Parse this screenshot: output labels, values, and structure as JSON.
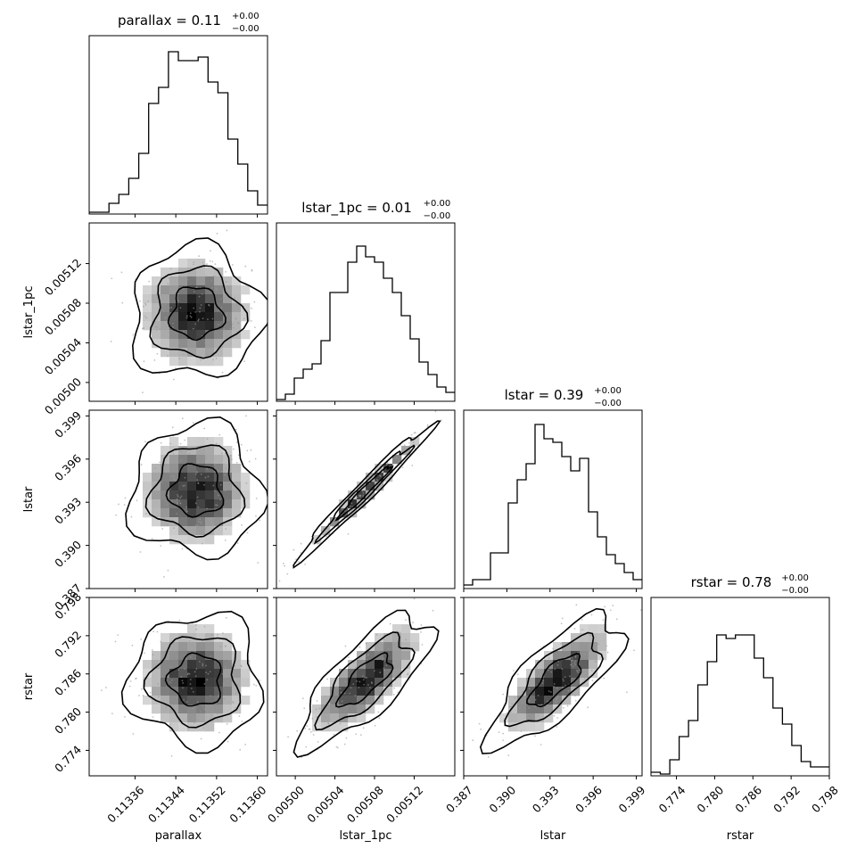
{
  "chart_data": {
    "type": "corner",
    "parameters": [
      {
        "name": "parallax",
        "range": [
          0.11327,
          0.11362
        ],
        "ticks": [
          0.11336,
          0.11344,
          0.11352,
          0.1136
        ],
        "tick_labels": [
          "0.11336",
          "0.11344",
          "0.11352",
          "0.11360"
        ]
      },
      {
        "name": "lstar_1pc",
        "range": [
          0.004981,
          0.005161
        ],
        "ticks": [
          0.005,
          0.00504,
          0.00508,
          0.00512
        ],
        "tick_labels": [
          "0.00500",
          "0.00504",
          "0.00508",
          "0.00512"
        ]
      },
      {
        "name": "lstar",
        "range": [
          0.387,
          0.3994
        ],
        "ticks": [
          0.387,
          0.39,
          0.393,
          0.396,
          0.399
        ],
        "tick_labels": [
          "0.387",
          "0.390",
          "0.393",
          "0.396",
          "0.399"
        ]
      },
      {
        "name": "rstar",
        "range": [
          0.77,
          0.798
        ],
        "ticks": [
          0.774,
          0.78,
          0.786,
          0.792,
          0.798
        ],
        "tick_labels": [
          "0.774",
          "0.780",
          "0.786",
          "0.792",
          "0.798"
        ]
      }
    ],
    "titles": [
      {
        "main": "parallax = 0.11",
        "sup": "+0.00",
        "sub": "−0.00"
      },
      {
        "main": "lstar_1pc = 0.01",
        "sup": "+0.00",
        "sub": "−0.00"
      },
      {
        "main": "lstar = 0.39",
        "sup": "+0.00",
        "sub": "−0.00"
      },
      {
        "main": "rstar = 0.78",
        "sup": "+0.00",
        "sub": "−0.00"
      }
    ],
    "histograms": [
      [
        0.01,
        0.01,
        0.06,
        0.11,
        0.2,
        0.34,
        0.62,
        0.71,
        0.91,
        0.86,
        0.86,
        0.88,
        0.74,
        0.68,
        0.42,
        0.28,
        0.13,
        0.05
      ],
      [
        0.01,
        0.04,
        0.13,
        0.18,
        0.21,
        0.34,
        0.61,
        0.61,
        0.78,
        0.87,
        0.81,
        0.78,
        0.69,
        0.61,
        0.48,
        0.35,
        0.22,
        0.15,
        0.08,
        0.05
      ],
      [
        0.02,
        0.05,
        0.05,
        0.2,
        0.2,
        0.48,
        0.61,
        0.7,
        0.92,
        0.84,
        0.82,
        0.74,
        0.66,
        0.73,
        0.43,
        0.29,
        0.19,
        0.14,
        0.09,
        0.05
      ],
      [
        0.02,
        0.01,
        0.09,
        0.22,
        0.31,
        0.51,
        0.64,
        0.79,
        0.77,
        0.79,
        0.79,
        0.66,
        0.55,
        0.38,
        0.29,
        0.17,
        0.08,
        0.05,
        0.05
      ]
    ],
    "pairs": [
      {
        "row": 1,
        "col": 0,
        "corr": 0.0,
        "center_y": 0.00507
      },
      {
        "row": 2,
        "col": 0,
        "corr": 0.0,
        "center_y": 0.3938
      },
      {
        "row": 2,
        "col": 1,
        "corr": 0.98,
        "center_y": 0.3938
      },
      {
        "row": 3,
        "col": 0,
        "corr": 0.0,
        "center_y": 0.785
      },
      {
        "row": 3,
        "col": 1,
        "corr": 0.75,
        "center_y": 0.785
      },
      {
        "row": 3,
        "col": 2,
        "corr": 0.75,
        "center_y": 0.785
      }
    ],
    "axis_labels": {
      "bottom": [
        "parallax",
        "lstar_1pc",
        "lstar",
        "rstar"
      ],
      "left": [
        "lstar_1pc",
        "lstar",
        "rstar"
      ]
    }
  }
}
